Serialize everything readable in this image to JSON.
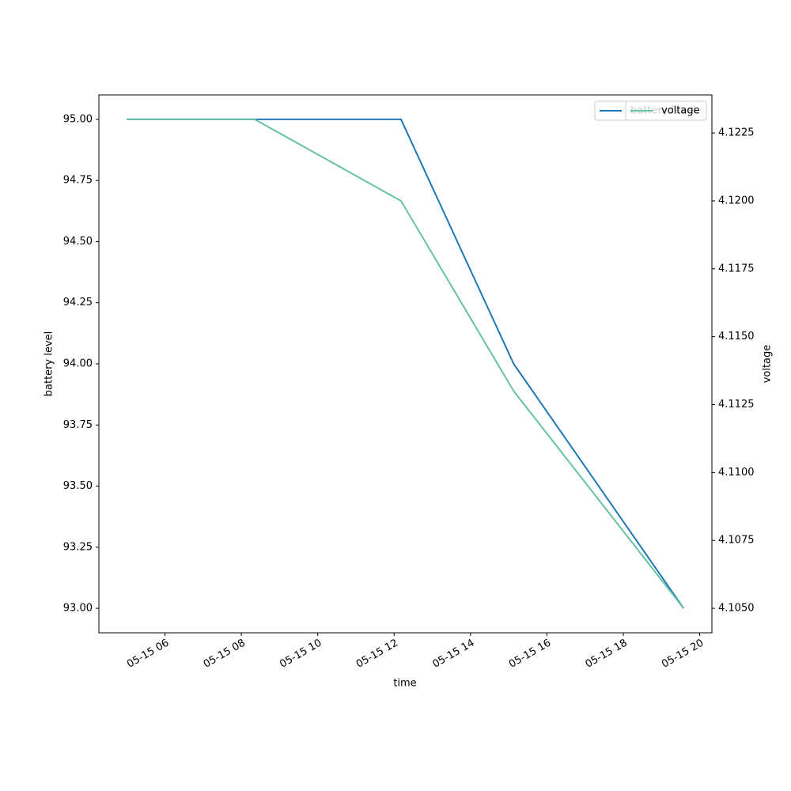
{
  "chart_data": {
    "type": "line",
    "x_label": "time",
    "y_label": "battery level",
    "y2_label": "voltage",
    "x": [
      5.0,
      8.35,
      12.18,
      15.13,
      19.58
    ],
    "series": [
      {
        "name": "battery level",
        "color": "#1f77b4",
        "values": [
          95,
          95,
          95,
          94,
          93
        ]
      },
      {
        "name": "voltage",
        "color": "#66c2a5",
        "axis": "y2",
        "values": [
          4.123,
          4.123,
          4.12,
          4.113,
          4.105
        ]
      }
    ],
    "xlim": [
      4.27,
      20.32
    ],
    "xticks": [
      {
        "value": 6,
        "label": "05-15 06"
      },
      {
        "value": 8,
        "label": "05-15 08"
      },
      {
        "value": 10,
        "label": "05-15 10"
      },
      {
        "value": 12,
        "label": "05-15 12"
      },
      {
        "value": 14,
        "label": "05-15 14"
      },
      {
        "value": 16,
        "label": "05-15 16"
      },
      {
        "value": 18,
        "label": "05-15 18"
      },
      {
        "value": 20,
        "label": "05-15 20"
      }
    ],
    "ylim": [
      92.9,
      95.1
    ],
    "yticks": [
      {
        "value": 93,
        "label": "93.00"
      },
      {
        "value": 93.25,
        "label": "93.25"
      },
      {
        "value": 93.5,
        "label": "93.50"
      },
      {
        "value": 93.75,
        "label": "93.75"
      },
      {
        "value": 94,
        "label": "94.00"
      },
      {
        "value": 94.25,
        "label": "94.25"
      },
      {
        "value": 94.5,
        "label": "94.50"
      },
      {
        "value": 94.75,
        "label": "94.75"
      },
      {
        "value": 95,
        "label": "95.00"
      }
    ],
    "y2lim": [
      4.1041,
      4.1239
    ],
    "y2ticks": [
      {
        "value": 4.105,
        "label": "4.1050"
      },
      {
        "value": 4.1075,
        "label": "4.1075"
      },
      {
        "value": 4.11,
        "label": "4.1100"
      },
      {
        "value": 4.1125,
        "label": "4.1125"
      },
      {
        "value": 4.115,
        "label": "4.1150"
      },
      {
        "value": 4.1175,
        "label": "4.1175"
      },
      {
        "value": 4.12,
        "label": "4.1200"
      },
      {
        "value": 4.1225,
        "label": "4.1225"
      }
    ],
    "legend": "upper right"
  }
}
